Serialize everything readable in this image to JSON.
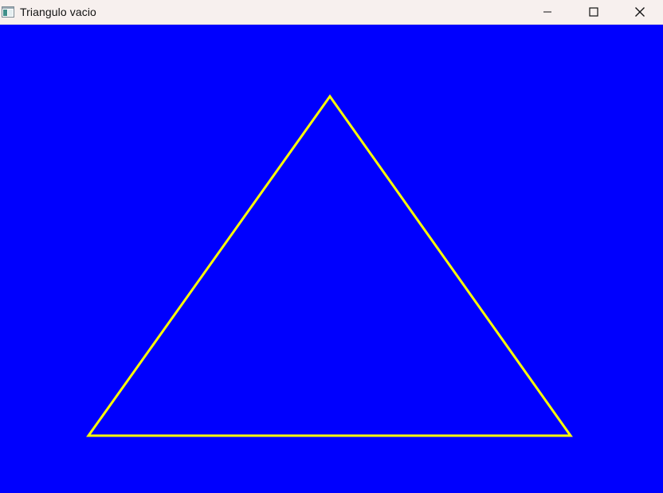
{
  "window": {
    "title": "Triangulo vacio",
    "titlebar_color": "#f7f0ee",
    "icons": {
      "app": "app-window-icon",
      "minimize": "minimize-icon",
      "maximize": "maximize-icon",
      "close": "close-icon"
    }
  },
  "canvas": {
    "background_color": "#0000fe",
    "shape": "triangle-outline",
    "stroke_color": "#ffff00"
  }
}
